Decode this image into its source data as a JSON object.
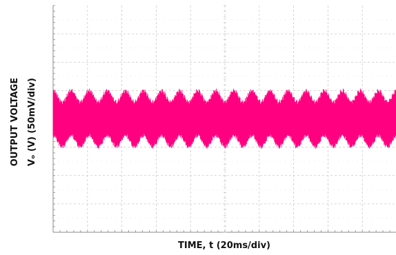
{
  "chart_data": {
    "type": "line",
    "title": "",
    "xlabel": "TIME, t (20ms/div)",
    "ylabel_line1": "OUTPUT VOLTAGE",
    "ylabel_line2": "Vₒ (V) (50mV/div)",
    "x_divisions": 10,
    "y_divisions": 8,
    "grid": true,
    "series": [
      {
        "color": "#FF0080",
        "signal": "ripple envelope",
        "envelope_center_div": 0.0,
        "envelope_half_height_div": {
          "min": 0.55,
          "max": 0.95
        },
        "envelope_modulation_cycles": 19
      }
    ],
    "colors": {
      "trace": "#FF0080",
      "grid_major": "#c8c8c8",
      "grid_minor": "#d8d8d8",
      "axis": "#888888"
    }
  }
}
